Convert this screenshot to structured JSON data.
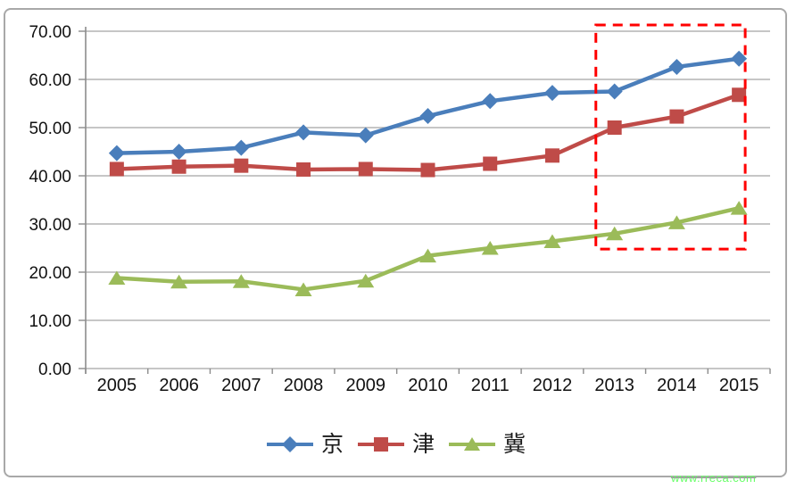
{
  "watermark": {
    "text": "www.rreca.com",
    "color": "#66ff66"
  },
  "chart_data": {
    "type": "line",
    "x": [
      "2005",
      "2006",
      "2007",
      "2008",
      "2009",
      "2010",
      "2011",
      "2012",
      "2013",
      "2014",
      "2015"
    ],
    "series": [
      {
        "name": "京",
        "marker": "diamond",
        "color": "#4a7ebb",
        "values": [
          44.7,
          45.0,
          45.8,
          49.0,
          48.4,
          52.4,
          55.5,
          57.2,
          57.5,
          62.6,
          64.3
        ]
      },
      {
        "name": "津",
        "marker": "square",
        "color": "#bf4b48",
        "values": [
          41.4,
          41.9,
          42.1,
          41.3,
          41.4,
          41.2,
          42.5,
          44.2,
          50.0,
          52.3,
          56.8
        ]
      },
      {
        "name": "冀",
        "marker": "triangle",
        "color": "#9bbb59",
        "values": [
          18.8,
          18.0,
          18.1,
          16.4,
          18.2,
          23.4,
          25.0,
          26.4,
          28.0,
          30.3,
          33.3
        ]
      }
    ],
    "title": "",
    "xlabel": "",
    "ylabel": "",
    "ylim": [
      0,
      70
    ],
    "y_ticks": [
      "0.00",
      "10.00",
      "20.00",
      "30.00",
      "40.00",
      "50.00",
      "60.00",
      "70.00"
    ],
    "grid": true,
    "legend_position": "bottom",
    "annotation": {
      "shape": "dashed-rect",
      "color": "#ff0000",
      "highlight_years": [
        "2013",
        "2014",
        "2015"
      ],
      "x_index_range": [
        7.7,
        10.1
      ],
      "y_value_range": [
        24.8,
        71.3
      ]
    }
  }
}
